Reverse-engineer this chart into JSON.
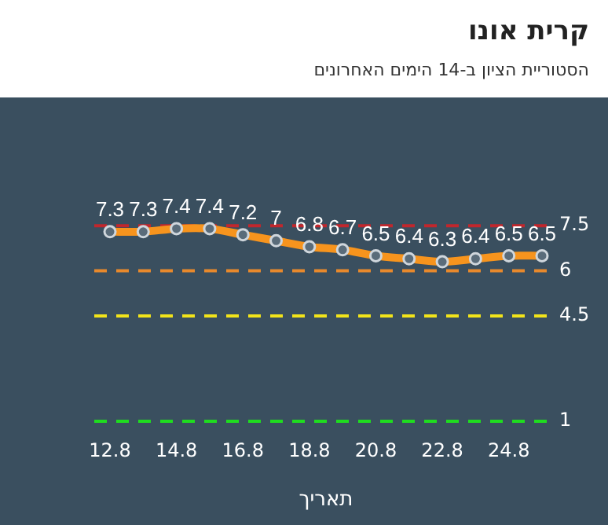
{
  "chart_data": {
    "type": "line",
    "title": "קרית אונו",
    "subtitle": "הסטוריית הציון ב-14 הימים האחרונים",
    "xlabel": "תאריך",
    "categories": [
      "12.8",
      null,
      "14.8",
      null,
      "16.8",
      null,
      "18.8",
      null,
      "20.8",
      null,
      "22.8",
      null,
      "24.8",
      null
    ],
    "series": [
      {
        "color": "#f7941d",
        "values": [
          7.3,
          7.3,
          7.4,
          7.4,
          7.2,
          7,
          6.8,
          6.7,
          6.5,
          6.4,
          6.3,
          6.4,
          6.5,
          6.5
        ]
      }
    ],
    "tick_labels": "x",
    "grid": false,
    "legend": false,
    "marker": "circle",
    "line_style": "solid",
    "data_labels": true,
    "ref_lines": [
      {
        "axis": "y",
        "value": 7.5,
        "label": "7.5",
        "color": "#c1272d",
        "line_style": "dashed"
      },
      {
        "axis": "y",
        "value": 6,
        "label": "6",
        "color": "#e8892c",
        "line_style": "dashed"
      },
      {
        "axis": "y",
        "value": 4.5,
        "label": "4.5",
        "color": "#f2e41a",
        "line_style": "dashed"
      },
      {
        "axis": "y",
        "value": 1,
        "label": "1",
        "color": "#1fdc1f",
        "line_style": "dashed"
      }
    ]
  }
}
